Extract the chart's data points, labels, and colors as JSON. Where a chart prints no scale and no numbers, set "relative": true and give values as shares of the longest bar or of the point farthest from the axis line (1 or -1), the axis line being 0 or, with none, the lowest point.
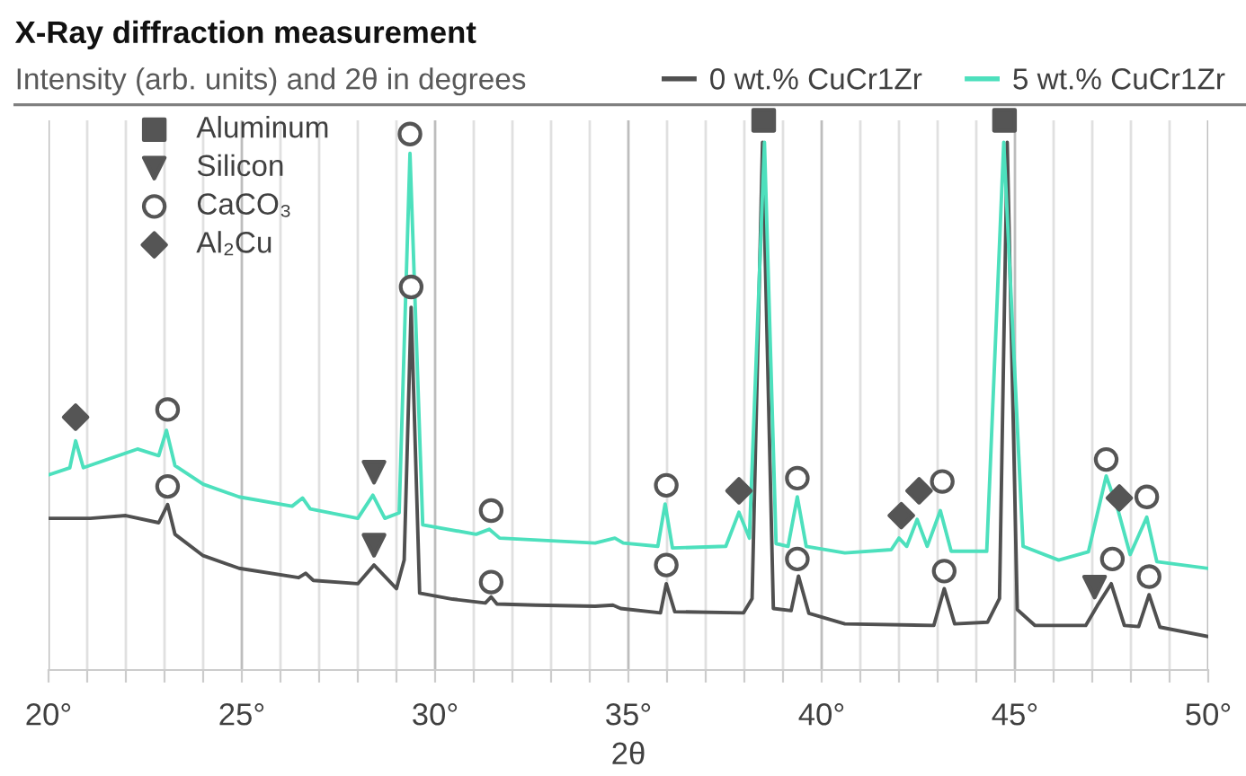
{
  "chart_data": {
    "type": "line",
    "title": "X-Ray diffraction measurement",
    "subtitle": "Intensity (arb. units) and 2θ in degrees",
    "xlabel": "2θ",
    "relative": true,
    "xlim": [
      20,
      50
    ],
    "xticks": [
      {
        "value": 20,
        "label": "20°"
      },
      {
        "value": 21,
        "label": null
      },
      {
        "value": 22,
        "label": null
      },
      {
        "value": 23,
        "label": null
      },
      {
        "value": 24,
        "label": null
      },
      {
        "value": 25,
        "label": "25°"
      },
      {
        "value": 26,
        "label": null
      },
      {
        "value": 27,
        "label": null
      },
      {
        "value": 28,
        "label": null
      },
      {
        "value": 29,
        "label": null
      },
      {
        "value": 30,
        "label": "30°"
      },
      {
        "value": 31,
        "label": null
      },
      {
        "value": 32,
        "label": null
      },
      {
        "value": 33,
        "label": null
      },
      {
        "value": 34,
        "label": null
      },
      {
        "value": 35,
        "label": "35°"
      },
      {
        "value": 36,
        "label": null
      },
      {
        "value": 37,
        "label": null
      },
      {
        "value": 38,
        "label": null
      },
      {
        "value": 39,
        "label": null
      },
      {
        "value": 40,
        "label": "40°"
      },
      {
        "value": 41,
        "label": null
      },
      {
        "value": 42,
        "label": null
      },
      {
        "value": 43,
        "label": null
      },
      {
        "value": 44,
        "label": null
      },
      {
        "value": 45,
        "label": "45°"
      },
      {
        "value": 46,
        "label": null
      },
      {
        "value": 47,
        "label": null
      },
      {
        "value": 48,
        "label": null
      },
      {
        "value": 49,
        "label": null
      },
      {
        "value": 50,
        "label": "50°"
      }
    ],
    "grid": "x",
    "legend": "top left",
    "series": [
      {
        "name": "0 wt.% CuCr1Zr",
        "color": "#505050",
        "x": [
          20.0,
          21.08,
          22.0,
          22.85,
          23.08,
          23.27,
          24.0,
          24.93,
          26.47,
          26.65,
          26.85,
          28.0,
          28.42,
          29.0,
          29.2,
          29.38,
          29.6,
          30.45,
          31.3,
          31.45,
          31.6,
          32.6,
          34.14,
          34.6,
          34.8,
          35.83,
          35.98,
          36.2,
          37.98,
          38.2,
          38.47,
          38.75,
          39.21,
          39.4,
          39.67,
          40.6,
          42.9,
          43.17,
          43.44,
          44.29,
          44.6,
          44.8,
          45.06,
          45.52,
          46.83,
          47.13,
          47.49,
          47.83,
          48.2,
          48.47,
          48.75,
          49.98
        ],
        "values": [
          0.276,
          0.276,
          0.281,
          0.268,
          0.301,
          0.247,
          0.208,
          0.185,
          0.168,
          0.176,
          0.163,
          0.157,
          0.191,
          0.148,
          0.2,
          0.66,
          0.14,
          0.129,
          0.122,
          0.133,
          0.12,
          0.118,
          0.116,
          0.118,
          0.112,
          0.104,
          0.157,
          0.106,
          0.104,
          0.13,
          0.96,
          0.112,
          0.108,
          0.171,
          0.103,
          0.084,
          0.081,
          0.148,
          0.084,
          0.087,
          0.13,
          0.96,
          0.11,
          0.081,
          0.081,
          0.117,
          0.157,
          0.081,
          0.079,
          0.137,
          0.078,
          0.061
        ]
      },
      {
        "name": "5 wt.% CuCr1Zr",
        "color": "#4de0bd",
        "x": [
          20.0,
          20.55,
          20.7,
          20.9,
          22.3,
          22.85,
          23.05,
          23.27,
          24.0,
          24.93,
          26.3,
          26.57,
          26.77,
          28.0,
          28.39,
          28.7,
          29.07,
          29.35,
          29.68,
          31.06,
          31.4,
          31.67,
          34.14,
          34.65,
          34.87,
          35.76,
          35.95,
          36.14,
          37.52,
          37.86,
          38.13,
          38.52,
          38.82,
          39.13,
          39.37,
          39.6,
          40.6,
          41.8,
          42.0,
          42.2,
          42.47,
          42.73,
          43.07,
          43.35,
          44.27,
          44.71,
          45.21,
          46.13,
          46.9,
          47.36,
          47.67,
          47.98,
          48.41,
          48.67,
          49.98
        ],
        "values": [
          0.355,
          0.368,
          0.417,
          0.368,
          0.402,
          0.39,
          0.436,
          0.372,
          0.338,
          0.315,
          0.298,
          0.313,
          0.293,
          0.276,
          0.318,
          0.276,
          0.286,
          0.94,
          0.264,
          0.247,
          0.256,
          0.24,
          0.231,
          0.24,
          0.231,
          0.225,
          0.302,
          0.222,
          0.225,
          0.287,
          0.24,
          0.96,
          0.23,
          0.225,
          0.315,
          0.225,
          0.213,
          0.219,
          0.24,
          0.225,
          0.274,
          0.225,
          0.29,
          0.216,
          0.216,
          0.96,
          0.225,
          0.2,
          0.215,
          0.353,
          0.29,
          0.21,
          0.278,
          0.197,
          0.185
        ]
      },
      {
        "name": "Aluminum",
        "type": "scatter",
        "marker": "square",
        "color": "#555555",
        "x": [
          38.5,
          44.73
        ],
        "values": [
          1.0,
          1.0
        ]
      },
      {
        "name": "Silicon",
        "type": "scatter",
        "marker": "triangle",
        "color": "#555555",
        "x": [
          28.42,
          28.42,
          47.06
        ],
        "values": [
          0.36,
          0.227,
          0.151
        ]
      },
      {
        "name": "CaCO₃",
        "type": "scatter",
        "marker": "circle",
        "color": "#555555",
        "x": [
          23.08,
          23.08,
          29.35,
          29.38,
          31.45,
          31.45,
          35.98,
          35.98,
          39.37,
          39.37,
          43.12,
          43.17,
          47.36,
          47.52,
          48.41,
          48.47
        ],
        "values": [
          0.474,
          0.334,
          0.975,
          0.697,
          0.29,
          0.16,
          0.336,
          0.191,
          0.349,
          0.202,
          0.343,
          0.18,
          0.383,
          0.202,
          0.315,
          0.17
        ]
      },
      {
        "name": "Al₂Cu",
        "type": "scatter",
        "marker": "diamond",
        "color": "#555555",
        "x": [
          20.7,
          37.86,
          42.06,
          42.52,
          47.7
        ],
        "values": [
          0.46,
          0.326,
          0.281,
          0.326,
          0.313
        ]
      }
    ]
  }
}
